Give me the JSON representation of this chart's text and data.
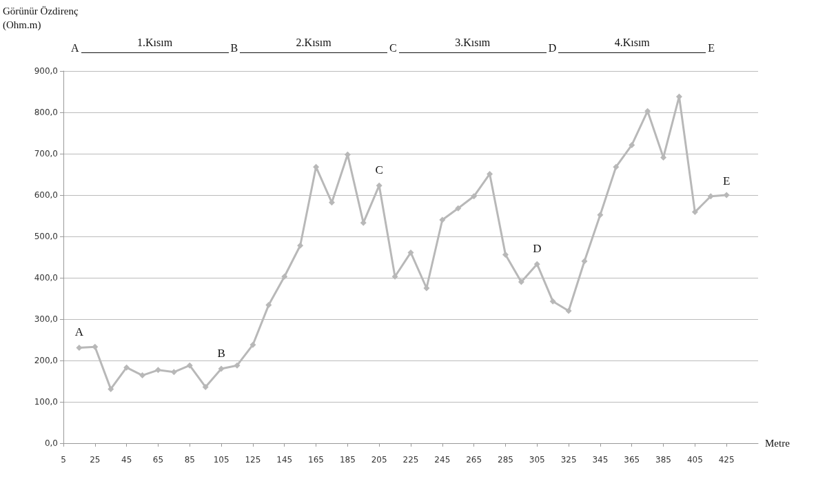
{
  "chart_data": {
    "type": "line",
    "xlabel": "Metre",
    "ylabel": "Görünür Özdirenç (Ohm.m)",
    "x": [
      15,
      25,
      35,
      45,
      55,
      65,
      75,
      85,
      95,
      105,
      115,
      125,
      135,
      145,
      155,
      165,
      175,
      185,
      195,
      205,
      215,
      225,
      235,
      245,
      255,
      265,
      275,
      285,
      295,
      305,
      315,
      325,
      335,
      345,
      355,
      365,
      375,
      385,
      395,
      405,
      415,
      425
    ],
    "series": [
      {
        "color": "#b8b8b8",
        "values": [
          231,
          233,
          131,
          183,
          164,
          177,
          172,
          188,
          136,
          180,
          188,
          238,
          334,
          403,
          478,
          668,
          582,
          698,
          533,
          623,
          403,
          461,
          375,
          540,
          568,
          597,
          651,
          456,
          390,
          433,
          343,
          320,
          440,
          552,
          668,
          721,
          803,
          691,
          838,
          559,
          597,
          600
        ]
      }
    ],
    "xlim": [
      5,
      445
    ],
    "xticks": [
      5,
      25,
      45,
      65,
      85,
      105,
      125,
      145,
      165,
      185,
      205,
      225,
      245,
      265,
      285,
      305,
      325,
      345,
      365,
      385,
      405,
      425
    ],
    "ylim": [
      0,
      900
    ],
    "yticks": [
      {
        "value": 0,
        "label": "0,0"
      },
      {
        "value": 100,
        "label": "100,0"
      },
      {
        "value": 200,
        "label": "200,0"
      },
      {
        "value": 300,
        "label": "300,0"
      },
      {
        "value": 400,
        "label": "400,0"
      },
      {
        "value": 500,
        "label": "500,0"
      },
      {
        "value": 600,
        "label": "600,0"
      },
      {
        "value": 700,
        "label": "700,0"
      },
      {
        "value": 800,
        "label": "800,0"
      },
      {
        "value": 900,
        "label": "900,0"
      }
    ],
    "grid": "y",
    "marker": "diamond",
    "line_style": "solid",
    "annotations": [
      {
        "text": "A",
        "x": 15,
        "y": 231
      },
      {
        "text": "B",
        "x": 105,
        "y": 180
      },
      {
        "text": "C",
        "x": 205,
        "y": 623
      },
      {
        "text": "D",
        "x": 305,
        "y": 433
      },
      {
        "text": "E",
        "x": 425,
        "y": 597
      },
      "A",
      "1.Kısım",
      "B",
      "2.Kısım",
      "C",
      "3.Kısım",
      "D",
      "4.Kısım",
      "E"
    ]
  }
}
